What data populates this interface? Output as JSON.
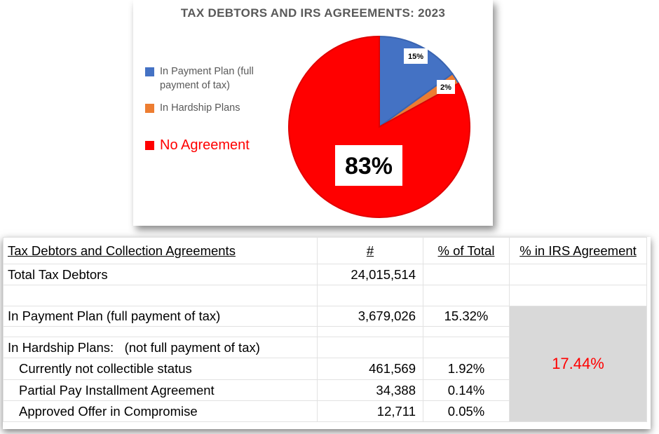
{
  "chart_data": {
    "type": "pie",
    "title": "TAX DEBTORS AND IRS AGREEMENTS:  2023",
    "legend_placement": "left",
    "slices": [
      {
        "name": "In Payment Plan (full payment of tax)",
        "value": 15,
        "label": "15%",
        "color": "#4472c4"
      },
      {
        "name": "In Hardship Plans",
        "value": 2,
        "label": "2%",
        "color": "#ed7d31"
      },
      {
        "name": "No Agreement",
        "value": 83,
        "label": "83%",
        "color": "#ff0000"
      }
    ]
  },
  "legend": {
    "payment_line1": "In Payment Plan (full",
    "payment_line2": "payment of tax)",
    "hardship": "In Hardship Plans",
    "none": "No Agreement"
  },
  "table": {
    "headers": [
      "Tax Debtors and Collection Agreements",
      "#",
      "% of Total",
      "% in IRS Agreement"
    ],
    "total": {
      "label": "Total Tax Debtors",
      "count": "24,015,514"
    },
    "payment": {
      "label": "In Payment Plan (full payment of tax)",
      "count": "3,679,026",
      "pct": "15.32%"
    },
    "hardship_label": "In Hardship Plans:   (not full payment of tax)",
    "hardship_rows": [
      {
        "label": "Currently not collectible status",
        "count": "461,569",
        "pct": "1.92%"
      },
      {
        "label": "Partial Pay Installment Agreement",
        "count": "34,388",
        "pct": "0.14%"
      },
      {
        "label": "Approved Offer in Compromise",
        "count": "12,711",
        "pct": "0.05%"
      }
    ],
    "irs_agreement_pct": "17.44%"
  }
}
